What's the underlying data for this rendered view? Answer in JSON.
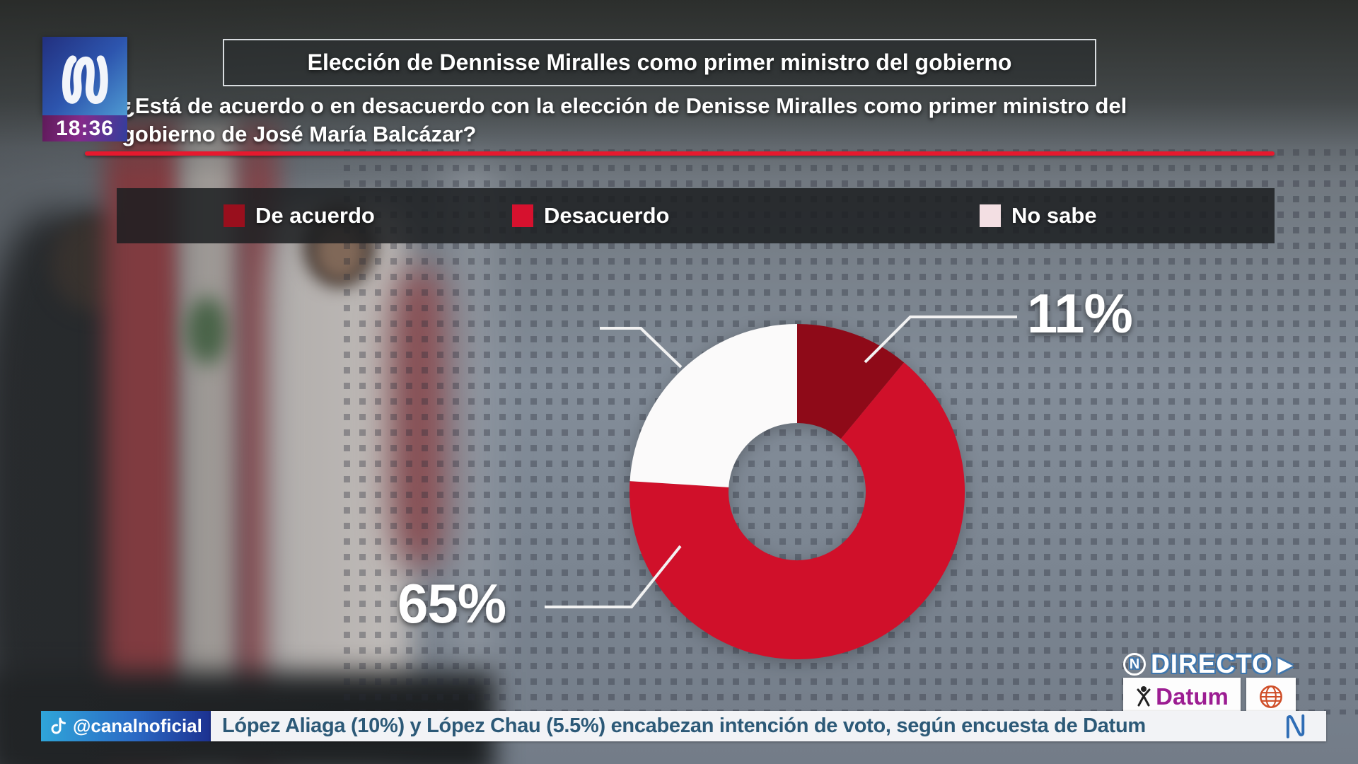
{
  "channel": {
    "name_glyph": "N",
    "time": "18:36"
  },
  "header": {
    "title": "Elección de Dennisse Miralles como primer ministro del gobierno",
    "question_line1": "¿Está de acuerdo o en desacuerdo con la elección de Denisse Miralles como primer ministro del",
    "question_line2": "gobierno de José María Balcázar?"
  },
  "chart_data": {
    "type": "pie",
    "donut": true,
    "title": "Elección de Dennisse Miralles como primer ministro del gobierno",
    "question": "¿Está de acuerdo o en desacuerdo con la elección de Denisse Miralles como primer ministro del gobierno de José María Balcázar?",
    "categories": [
      "De acuerdo",
      "Desacuerdo",
      "No sabe"
    ],
    "values": [
      11,
      65,
      24
    ],
    "colors": [
      "#8e0a18",
      "#d0102a",
      "#fbfafa"
    ],
    "legend_swatch_colors": [
      "#990f1d",
      "#d6112e",
      "#f3dfe3"
    ],
    "labels_shown": [
      "11%",
      "65%"
    ],
    "start_angle_deg": 0,
    "direction": "clockwise",
    "legend_position": "top"
  },
  "live_badge": {
    "n": "N",
    "label": "DIRECTO",
    "arrow": "▶"
  },
  "sources": {
    "datum": "Datum"
  },
  "ticker": {
    "handle": "@canalnoficial",
    "headline": "López Aliaga (10%) y López Chau (5.5%) encabezan intención de voto, según encuesta de Datum",
    "n_glyph": "N"
  },
  "colors": {
    "accent_red": "#e6192e",
    "agree_dark_red": "#8e0a18",
    "disagree_red": "#d0102a",
    "no_sabe_white": "#fbfafa",
    "ticker_text_blue": "#2c5977",
    "datum_magenta": "#9c1d92",
    "globe_orange": "#cf4e28",
    "directo_blue": "#4179ae",
    "logo_blue": "#2d55ae"
  }
}
